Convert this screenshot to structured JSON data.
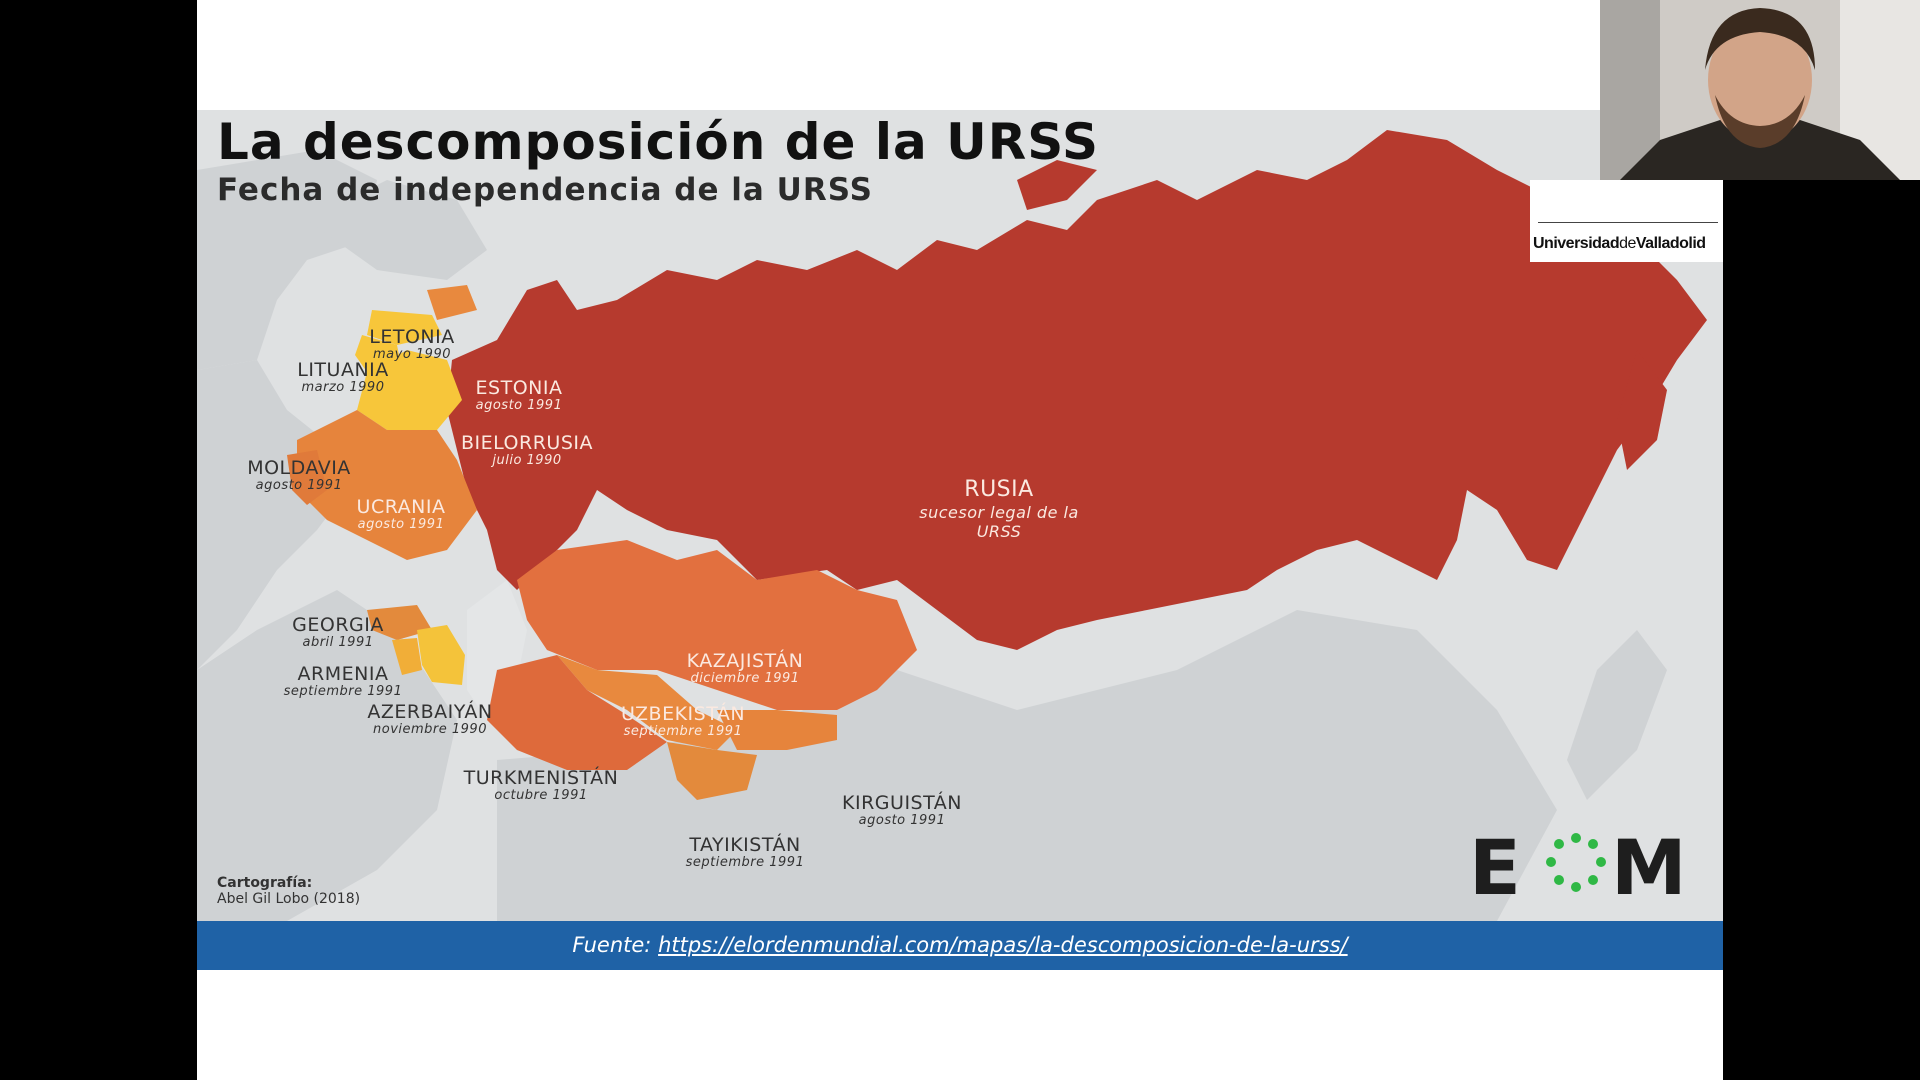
{
  "slide": {
    "title": "La descomposición de la URSS",
    "subtitle": "Fecha de independencia de la URSS"
  },
  "countries": [
    {
      "id": "letonia",
      "name": "LETONIA",
      "date": "mayo 1990",
      "color": "#f7c63a"
    },
    {
      "id": "lituania",
      "name": "LITUANIA",
      "date": "marzo 1990",
      "color": "#f7c63a"
    },
    {
      "id": "estonia",
      "name": "ESTONIA",
      "date": "agosto 1991",
      "color": "#e8893e"
    },
    {
      "id": "bielorrusia",
      "name": "BIELORRUSIA",
      "date": "julio 1990",
      "color": "#f7c63a"
    },
    {
      "id": "moldavia",
      "name": "MOLDAVIA",
      "date": "agosto 1991",
      "color": "#e07a3a"
    },
    {
      "id": "ucrania",
      "name": "UCRANIA",
      "date": "agosto 1991",
      "color": "#e6843c"
    },
    {
      "id": "rusia",
      "name": "RUSIA",
      "date": "sucesor legal de la URSS",
      "color": "#b63a2e"
    },
    {
      "id": "georgia",
      "name": "GEORGIA",
      "date": "abril 1991",
      "color": "#e38a3c"
    },
    {
      "id": "armenia",
      "name": "ARMENIA",
      "date": "septiembre 1991",
      "color": "#f1ae38"
    },
    {
      "id": "azerbaiyan",
      "name": "AZERBAIYÁN",
      "date": "noviembre 1990",
      "color": "#f4c33a"
    },
    {
      "id": "kazajistan",
      "name": "KAZAJISTÁN",
      "date": "diciembre 1991",
      "color": "#e2703f"
    },
    {
      "id": "uzbekistan",
      "name": "UZBEKISTÁN",
      "date": "septiembre 1991",
      "color": "#e8893e"
    },
    {
      "id": "turkmenistan",
      "name": "TURKMENISTÁN",
      "date": "octubre 1991",
      "color": "#de6a3b"
    },
    {
      "id": "kirguistan",
      "name": "KIRGUISTÁN",
      "date": "agosto 1991",
      "color": "#e6843c"
    },
    {
      "id": "tayikistan",
      "name": "TAYIKISTÁN",
      "date": "septiembre 1991",
      "color": "#e38a3c"
    }
  ],
  "credits": {
    "heading": "Cartografía:",
    "author": "Abel Gil Lobo (2018)"
  },
  "logo": {
    "text": "EOM",
    "ring_color": "#2fb845",
    "letter_color": "#1e1e1e"
  },
  "source": {
    "label": "Fuente:",
    "url": "https://elordenmundial.com/mapas/la-descomposicion-de-la-urss/"
  },
  "university": {
    "name_part1": "Universidad",
    "name_part2": "de",
    "name_part3": "Valladolid"
  },
  "colors": {
    "russia": "#b63a2e",
    "land": "#cfd2d4",
    "sea": "#e4e6e7",
    "source_bar": "#1f62a6"
  }
}
